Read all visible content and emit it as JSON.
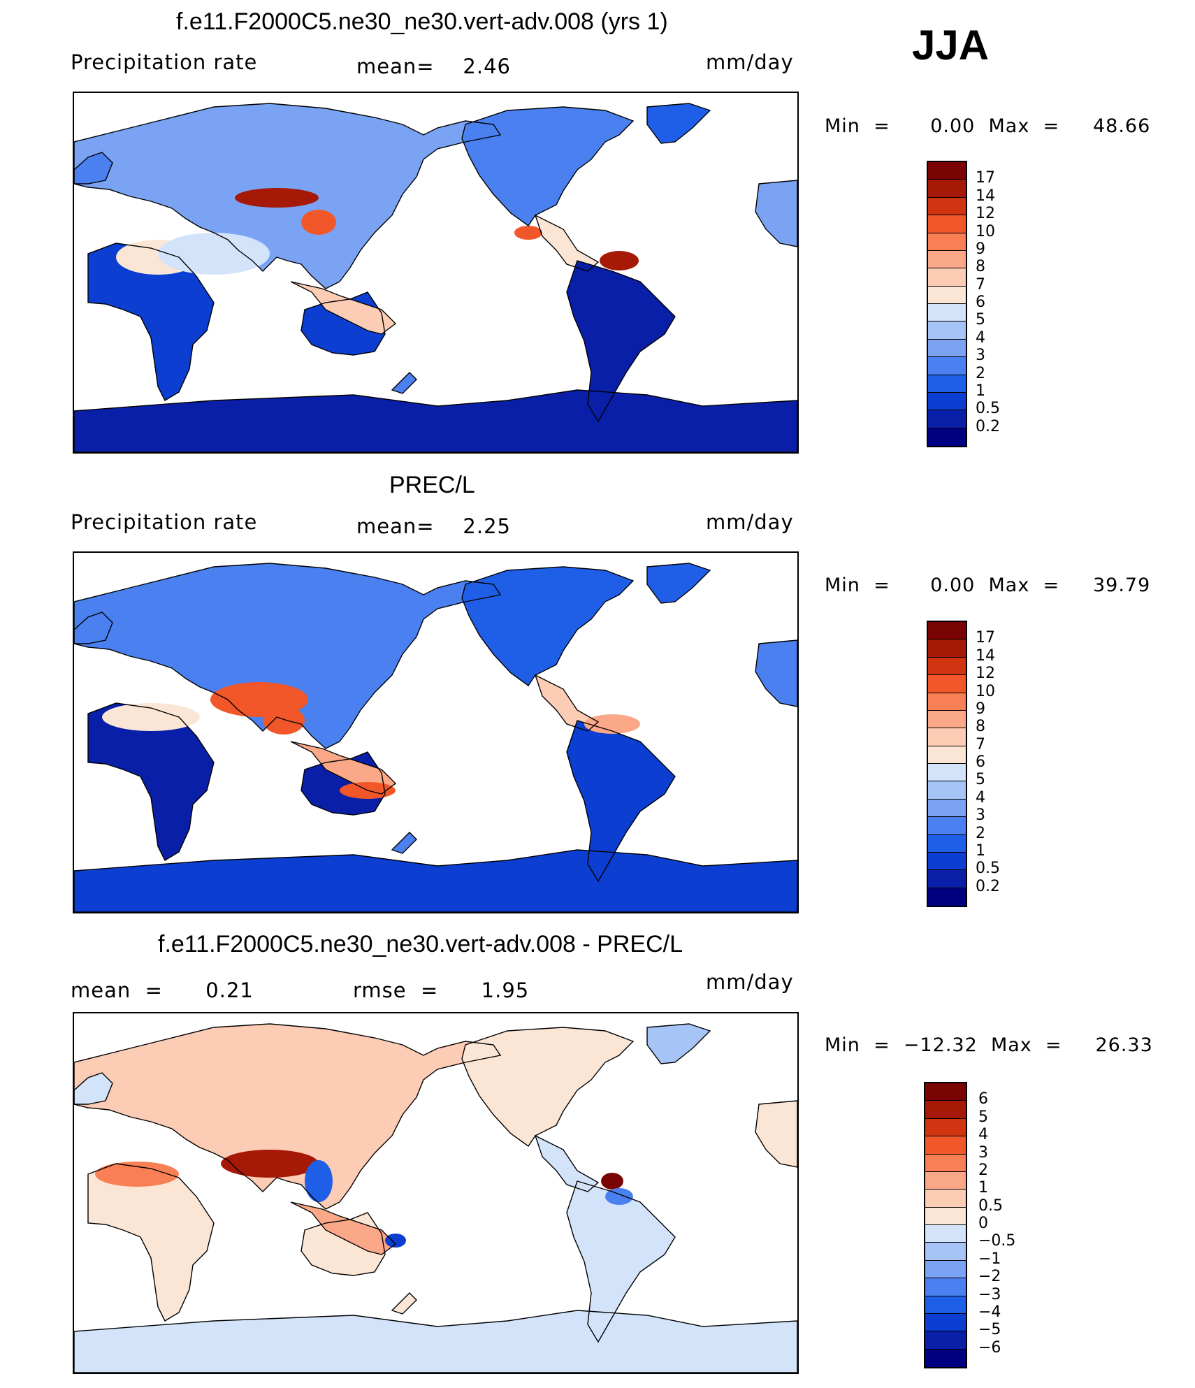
{
  "season": "JJA",
  "panels": [
    {
      "title": "f.e11.F2000C5.ne30_ne30.vert-adv.008 (yrs 1)",
      "left_text": "Precipitation  rate",
      "center_text": "mean=    2.46",
      "units": "mm/day",
      "minmax": "Min  =      0.00  Max  =     48.66",
      "colorbar_labels": [
        "17",
        "14",
        "12",
        "10",
        "9",
        "8",
        "7",
        "6",
        "5",
        "4",
        "3",
        "2",
        "1",
        "0.5",
        "0.2"
      ],
      "field": "model"
    },
    {
      "title": "PREC/L",
      "left_text": "Precipitation  rate",
      "center_text": "mean=    2.25",
      "units": "mm/day",
      "minmax": "Min  =      0.00  Max  =     39.79",
      "colorbar_labels": [
        "17",
        "14",
        "12",
        "10",
        "9",
        "8",
        "7",
        "6",
        "5",
        "4",
        "3",
        "2",
        "1",
        "0.5",
        "0.2"
      ],
      "field": "obs"
    },
    {
      "title": "f.e11.F2000C5.ne30_ne30.vert-adv.008 - PREC/L",
      "left_text": "mean  =      0.21",
      "center_text": "rmse  =      1.95",
      "units": "mm/day",
      "minmax": "Min  =  −12.32  Max  =     26.33",
      "colorbar_labels": [
        "6",
        "5",
        "4",
        "3",
        "2",
        "1",
        "0.5",
        "0",
        "−0.5",
        "−1",
        "−2",
        "−3",
        "−4",
        "−5",
        "−6"
      ],
      "field": "diff"
    }
  ],
  "colors": {
    "precip_scale": [
      "#000080",
      "#0a1fa8",
      "#0b3ed1",
      "#1f5fe8",
      "#4a80f0",
      "#7aa3f4",
      "#a7c4f7",
      "#d3e3fa",
      "#fbe6d6",
      "#fcccb5",
      "#fba888",
      "#f97f55",
      "#f2572a",
      "#d13410",
      "#a61906",
      "#7a0403"
    ],
    "diff_scale": [
      "#000080",
      "#0a1fa8",
      "#0b3ed1",
      "#1f5fe8",
      "#4a80f0",
      "#7aa3f4",
      "#a7c4f7",
      "#d3e3fa",
      "#fbe6d6",
      "#fcccb5",
      "#fba888",
      "#f97f55",
      "#f2572a",
      "#d13410",
      "#a61906",
      "#7a0403"
    ]
  }
}
